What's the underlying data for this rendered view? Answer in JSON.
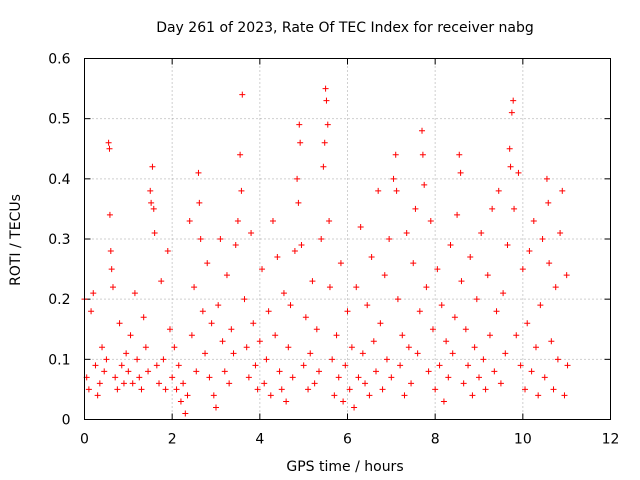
{
  "chart_data": {
    "type": "scatter",
    "title": "Day 261 of 2023, Rate Of TEC Index for receiver nabg",
    "xlabel": "GPS time / hours",
    "ylabel": "ROTI / TECUs",
    "xlim": [
      0,
      12
    ],
    "ylim": [
      0,
      0.6
    ],
    "xticks": [
      0,
      2,
      4,
      6,
      8,
      10,
      12
    ],
    "yticks": [
      0,
      0.1,
      0.2,
      0.3,
      0.4,
      0.5,
      0.6
    ],
    "xtick_labels": [
      "0",
      "2",
      "4",
      "6",
      "8",
      "10",
      "12"
    ],
    "ytick_labels": [
      "0",
      "0.1",
      "0.2",
      "0.3",
      "0.4",
      "0.5",
      "0.6"
    ],
    "grid": true,
    "marker": "plus",
    "color": "#ff0000",
    "series": [
      {
        "values": [
          [
            0.0,
            0.2
          ],
          [
            0.05,
            0.07
          ],
          [
            0.1,
            0.05
          ],
          [
            0.15,
            0.18
          ],
          [
            0.2,
            0.21
          ],
          [
            0.25,
            0.09
          ],
          [
            0.3,
            0.04
          ],
          [
            0.35,
            0.06
          ],
          [
            0.4,
            0.12
          ],
          [
            0.45,
            0.08
          ],
          [
            0.5,
            0.1
          ],
          [
            0.55,
            0.46
          ],
          [
            0.57,
            0.45
          ],
          [
            0.58,
            0.34
          ],
          [
            0.6,
            0.28
          ],
          [
            0.62,
            0.25
          ],
          [
            0.65,
            0.22
          ],
          [
            0.7,
            0.07
          ],
          [
            0.75,
            0.05
          ],
          [
            0.8,
            0.16
          ],
          [
            0.85,
            0.09
          ],
          [
            0.9,
            0.06
          ],
          [
            0.95,
            0.11
          ],
          [
            1.0,
            0.08
          ],
          [
            1.05,
            0.14
          ],
          [
            1.1,
            0.06
          ],
          [
            1.15,
            0.21
          ],
          [
            1.2,
            0.1
          ],
          [
            1.25,
            0.07
          ],
          [
            1.3,
            0.05
          ],
          [
            1.35,
            0.17
          ],
          [
            1.4,
            0.12
          ],
          [
            1.45,
            0.08
          ],
          [
            1.5,
            0.38
          ],
          [
            1.52,
            0.36
          ],
          [
            1.55,
            0.42
          ],
          [
            1.58,
            0.35
          ],
          [
            1.6,
            0.31
          ],
          [
            1.65,
            0.09
          ],
          [
            1.7,
            0.06
          ],
          [
            1.75,
            0.23
          ],
          [
            1.8,
            0.1
          ],
          [
            1.85,
            0.05
          ],
          [
            1.9,
            0.28
          ],
          [
            1.95,
            0.15
          ],
          [
            2.0,
            0.07
          ],
          [
            2.05,
            0.12
          ],
          [
            2.1,
            0.05
          ],
          [
            2.15,
            0.09
          ],
          [
            2.2,
            0.03
          ],
          [
            2.25,
            0.06
          ],
          [
            2.3,
            0.01
          ],
          [
            2.35,
            0.04
          ],
          [
            2.4,
            0.33
          ],
          [
            2.45,
            0.14
          ],
          [
            2.5,
            0.22
          ],
          [
            2.55,
            0.08
          ],
          [
            2.6,
            0.41
          ],
          [
            2.62,
            0.36
          ],
          [
            2.65,
            0.3
          ],
          [
            2.7,
            0.18
          ],
          [
            2.75,
            0.11
          ],
          [
            2.8,
            0.26
          ],
          [
            2.85,
            0.07
          ],
          [
            2.9,
            0.16
          ],
          [
            2.95,
            0.04
          ],
          [
            3.0,
            0.02
          ],
          [
            3.05,
            0.19
          ],
          [
            3.1,
            0.3
          ],
          [
            3.15,
            0.13
          ],
          [
            3.2,
            0.08
          ],
          [
            3.25,
            0.24
          ],
          [
            3.3,
            0.06
          ],
          [
            3.35,
            0.15
          ],
          [
            3.4,
            0.11
          ],
          [
            3.45,
            0.29
          ],
          [
            3.5,
            0.33
          ],
          [
            3.55,
            0.44
          ],
          [
            3.58,
            0.38
          ],
          [
            3.6,
            0.54
          ],
          [
            3.65,
            0.2
          ],
          [
            3.7,
            0.12
          ],
          [
            3.75,
            0.07
          ],
          [
            3.8,
            0.31
          ],
          [
            3.85,
            0.16
          ],
          [
            3.9,
            0.09
          ],
          [
            3.95,
            0.05
          ],
          [
            4.0,
            0.13
          ],
          [
            4.05,
            0.25
          ],
          [
            4.1,
            0.06
          ],
          [
            4.15,
            0.1
          ],
          [
            4.2,
            0.18
          ],
          [
            4.25,
            0.04
          ],
          [
            4.3,
            0.33
          ],
          [
            4.35,
            0.14
          ],
          [
            4.4,
            0.27
          ],
          [
            4.45,
            0.08
          ],
          [
            4.5,
            0.05
          ],
          [
            4.55,
            0.21
          ],
          [
            4.6,
            0.03
          ],
          [
            4.65,
            0.12
          ],
          [
            4.7,
            0.19
          ],
          [
            4.75,
            0.07
          ],
          [
            4.8,
            0.28
          ],
          [
            4.85,
            0.4
          ],
          [
            4.88,
            0.36
          ],
          [
            4.9,
            0.49
          ],
          [
            4.92,
            0.46
          ],
          [
            4.95,
            0.29
          ],
          [
            5.0,
            0.09
          ],
          [
            5.05,
            0.17
          ],
          [
            5.1,
            0.05
          ],
          [
            5.15,
            0.11
          ],
          [
            5.2,
            0.23
          ],
          [
            5.25,
            0.06
          ],
          [
            5.3,
            0.15
          ],
          [
            5.35,
            0.08
          ],
          [
            5.4,
            0.3
          ],
          [
            5.45,
            0.42
          ],
          [
            5.48,
            0.46
          ],
          [
            5.5,
            0.55
          ],
          [
            5.52,
            0.53
          ],
          [
            5.55,
            0.49
          ],
          [
            5.58,
            0.33
          ],
          [
            5.6,
            0.22
          ],
          [
            5.65,
            0.1
          ],
          [
            5.7,
            0.04
          ],
          [
            5.75,
            0.14
          ],
          [
            5.8,
            0.07
          ],
          [
            5.85,
            0.26
          ],
          [
            5.9,
            0.03
          ],
          [
            5.95,
            0.09
          ],
          [
            6.0,
            0.18
          ],
          [
            6.05,
            0.05
          ],
          [
            6.1,
            0.12
          ],
          [
            6.15,
            0.02
          ],
          [
            6.2,
            0.22
          ],
          [
            6.25,
            0.07
          ],
          [
            6.3,
            0.32
          ],
          [
            6.35,
            0.11
          ],
          [
            6.4,
            0.06
          ],
          [
            6.45,
            0.19
          ],
          [
            6.5,
            0.04
          ],
          [
            6.55,
            0.27
          ],
          [
            6.6,
            0.13
          ],
          [
            6.65,
            0.08
          ],
          [
            6.7,
            0.38
          ],
          [
            6.75,
            0.16
          ],
          [
            6.8,
            0.05
          ],
          [
            6.85,
            0.24
          ],
          [
            6.9,
            0.1
          ],
          [
            6.95,
            0.3
          ],
          [
            7.0,
            0.07
          ],
          [
            7.05,
            0.4
          ],
          [
            7.1,
            0.44
          ],
          [
            7.12,
            0.38
          ],
          [
            7.15,
            0.2
          ],
          [
            7.2,
            0.09
          ],
          [
            7.25,
            0.14
          ],
          [
            7.3,
            0.04
          ],
          [
            7.35,
            0.31
          ],
          [
            7.4,
            0.12
          ],
          [
            7.45,
            0.06
          ],
          [
            7.5,
            0.26
          ],
          [
            7.55,
            0.35
          ],
          [
            7.6,
            0.11
          ],
          [
            7.65,
            0.18
          ],
          [
            7.7,
            0.48
          ],
          [
            7.72,
            0.44
          ],
          [
            7.75,
            0.39
          ],
          [
            7.8,
            0.22
          ],
          [
            7.85,
            0.08
          ],
          [
            7.9,
            0.33
          ],
          [
            7.95,
            0.15
          ],
          [
            8.0,
            0.05
          ],
          [
            8.05,
            0.25
          ],
          [
            8.1,
            0.09
          ],
          [
            8.15,
            0.19
          ],
          [
            8.2,
            0.03
          ],
          [
            8.25,
            0.13
          ],
          [
            8.3,
            0.07
          ],
          [
            8.35,
            0.29
          ],
          [
            8.4,
            0.11
          ],
          [
            8.45,
            0.17
          ],
          [
            8.5,
            0.34
          ],
          [
            8.55,
            0.44
          ],
          [
            8.58,
            0.41
          ],
          [
            8.6,
            0.23
          ],
          [
            8.65,
            0.06
          ],
          [
            8.7,
            0.15
          ],
          [
            8.75,
            0.09
          ],
          [
            8.8,
            0.27
          ],
          [
            8.85,
            0.04
          ],
          [
            8.9,
            0.12
          ],
          [
            8.95,
            0.2
          ],
          [
            9.0,
            0.07
          ],
          [
            9.05,
            0.31
          ],
          [
            9.1,
            0.1
          ],
          [
            9.15,
            0.05
          ],
          [
            9.2,
            0.24
          ],
          [
            9.25,
            0.14
          ],
          [
            9.3,
            0.35
          ],
          [
            9.35,
            0.08
          ],
          [
            9.4,
            0.18
          ],
          [
            9.45,
            0.38
          ],
          [
            9.5,
            0.06
          ],
          [
            9.55,
            0.21
          ],
          [
            9.6,
            0.11
          ],
          [
            9.65,
            0.29
          ],
          [
            9.7,
            0.45
          ],
          [
            9.72,
            0.42
          ],
          [
            9.75,
            0.51
          ],
          [
            9.78,
            0.53
          ],
          [
            9.8,
            0.35
          ],
          [
            9.85,
            0.14
          ],
          [
            9.9,
            0.41
          ],
          [
            9.95,
            0.09
          ],
          [
            10.0,
            0.25
          ],
          [
            10.05,
            0.05
          ],
          [
            10.1,
            0.16
          ],
          [
            10.15,
            0.28
          ],
          [
            10.2,
            0.08
          ],
          [
            10.25,
            0.33
          ],
          [
            10.3,
            0.12
          ],
          [
            10.35,
            0.04
          ],
          [
            10.4,
            0.19
          ],
          [
            10.45,
            0.3
          ],
          [
            10.5,
            0.07
          ],
          [
            10.55,
            0.4
          ],
          [
            10.58,
            0.36
          ],
          [
            10.6,
            0.26
          ],
          [
            10.65,
            0.13
          ],
          [
            10.7,
            0.05
          ],
          [
            10.75,
            0.22
          ],
          [
            10.8,
            0.1
          ],
          [
            10.85,
            0.31
          ],
          [
            10.9,
            0.38
          ],
          [
            10.95,
            0.04
          ],
          [
            11.0,
            0.24
          ],
          [
            11.02,
            0.09
          ]
        ]
      }
    ]
  }
}
